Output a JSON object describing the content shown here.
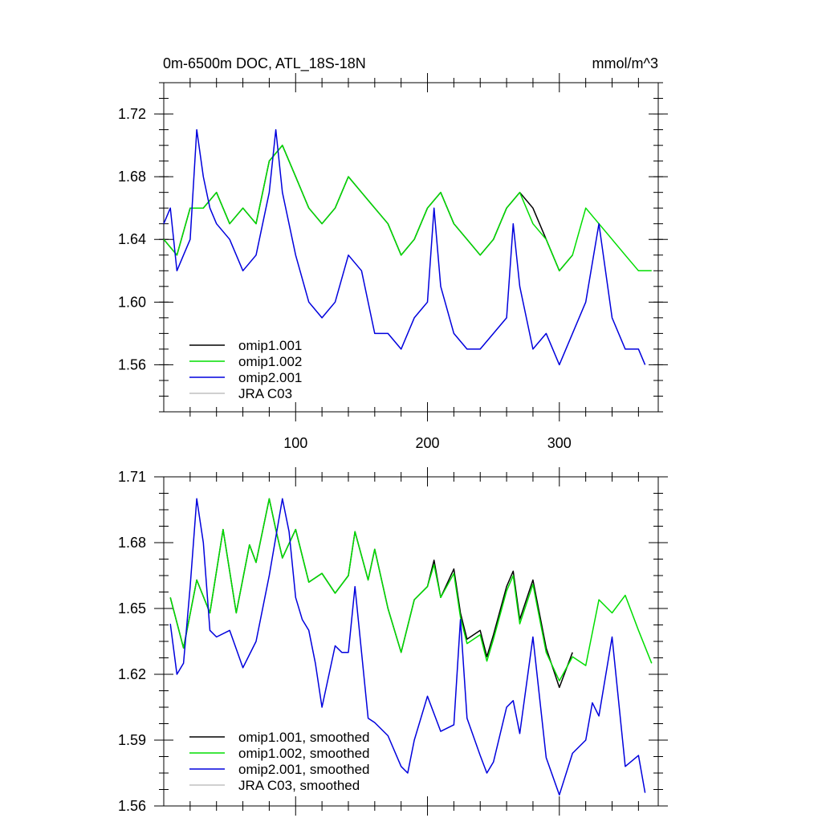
{
  "chart_data": [
    {
      "type": "line",
      "title_left": "0m-6500m DOC, ATL_18S-18N",
      "title_right": "mmol/m^3",
      "xlim": [
        0,
        375
      ],
      "ylim": [
        1.53,
        1.74
      ],
      "y_ticks": [
        "1.56",
        "1.60",
        "1.64",
        "1.68",
        "1.72"
      ],
      "x_ticks": [
        "100",
        "200",
        "300"
      ],
      "legend": [
        "omip1.001",
        "omip1.002",
        "omip2.001",
        "JRA C03"
      ],
      "series": [
        {
          "name": "omip1.001",
          "color": "#000000",
          "x": [
            0,
            10,
            20,
            30,
            40,
            50,
            60,
            70,
            80,
            90,
            100,
            110,
            120,
            130,
            140,
            150,
            160,
            170,
            180,
            190,
            200,
            210,
            220,
            230,
            240,
            250,
            260,
            270,
            280,
            290,
            300,
            310
          ],
          "values": [
            1.64,
            1.63,
            1.66,
            1.66,
            1.67,
            1.65,
            1.66,
            1.65,
            1.69,
            1.7,
            1.68,
            1.66,
            1.65,
            1.66,
            1.68,
            1.67,
            1.66,
            1.65,
            1.63,
            1.64,
            1.66,
            1.67,
            1.65,
            1.64,
            1.63,
            1.64,
            1.66,
            1.67,
            1.66,
            1.64,
            1.62,
            1.63
          ]
        },
        {
          "name": "omip1.002",
          "color": "#00dd00",
          "x": [
            0,
            10,
            20,
            30,
            40,
            50,
            60,
            70,
            80,
            90,
            100,
            110,
            120,
            130,
            140,
            150,
            160,
            170,
            180,
            190,
            200,
            210,
            220,
            230,
            240,
            250,
            260,
            270,
            280,
            290,
            300,
            310,
            320,
            330,
            340,
            350,
            360,
            370
          ],
          "values": [
            1.64,
            1.63,
            1.66,
            1.66,
            1.67,
            1.65,
            1.66,
            1.65,
            1.69,
            1.7,
            1.68,
            1.66,
            1.65,
            1.66,
            1.68,
            1.67,
            1.66,
            1.65,
            1.63,
            1.64,
            1.66,
            1.67,
            1.65,
            1.64,
            1.63,
            1.64,
            1.66,
            1.67,
            1.65,
            1.64,
            1.62,
            1.63,
            1.66,
            1.65,
            1.64,
            1.63,
            1.62,
            1.62
          ]
        },
        {
          "name": "omip2.001",
          "color": "#0000dd",
          "x": [
            0,
            5,
            10,
            15,
            20,
            25,
            30,
            35,
            40,
            50,
            60,
            70,
            80,
            85,
            90,
            100,
            110,
            120,
            130,
            140,
            150,
            160,
            170,
            180,
            190,
            200,
            205,
            210,
            220,
            230,
            240,
            250,
            260,
            265,
            270,
            280,
            290,
            300,
            310,
            320,
            330,
            340,
            350,
            360,
            365
          ],
          "values": [
            1.65,
            1.66,
            1.62,
            1.63,
            1.64,
            1.71,
            1.68,
            1.66,
            1.65,
            1.64,
            1.62,
            1.63,
            1.67,
            1.71,
            1.67,
            1.63,
            1.6,
            1.59,
            1.6,
            1.63,
            1.62,
            1.58,
            1.58,
            1.57,
            1.59,
            1.6,
            1.66,
            1.61,
            1.58,
            1.57,
            1.57,
            1.58,
            1.59,
            1.65,
            1.61,
            1.57,
            1.58,
            1.56,
            1.58,
            1.6,
            1.65,
            1.59,
            1.57,
            1.57,
            1.56
          ]
        },
        {
          "name": "JRA C03",
          "color": "#c0c0c0",
          "x": [],
          "values": []
        }
      ]
    },
    {
      "type": "line",
      "xlim": [
        0,
        375
      ],
      "ylim": [
        1.56,
        1.71
      ],
      "y_ticks": [
        "1.56",
        "1.59",
        "1.62",
        "1.65",
        "1.68",
        "1.71"
      ],
      "legend": [
        "omip1.001, smoothed",
        "omip1.002, smoothed",
        "omip2.001, smoothed",
        "JRA C03, smoothed"
      ],
      "series": [
        {
          "name": "omip1.001, smoothed",
          "color": "#000000",
          "x": [
            5,
            15,
            25,
            35,
            45,
            55,
            65,
            70,
            80,
            85,
            90,
            100,
            110,
            120,
            130,
            140,
            145,
            155,
            160,
            170,
            180,
            190,
            200,
            205,
            210,
            220,
            225,
            230,
            240,
            245,
            250,
            260,
            265,
            270,
            280,
            290,
            300,
            310
          ],
          "values": [
            1.655,
            1.632,
            1.663,
            1.648,
            1.686,
            1.648,
            1.679,
            1.671,
            1.7,
            1.686,
            1.673,
            1.686,
            1.662,
            1.666,
            1.657,
            1.665,
            1.685,
            1.663,
            1.677,
            1.65,
            1.63,
            1.654,
            1.66,
            1.672,
            1.655,
            1.668,
            1.648,
            1.636,
            1.64,
            1.628,
            1.638,
            1.66,
            1.667,
            1.645,
            1.663,
            1.632,
            1.614,
            1.63
          ]
        },
        {
          "name": "omip1.002, smoothed",
          "color": "#00dd00",
          "x": [
            5,
            15,
            25,
            35,
            45,
            55,
            65,
            70,
            80,
            85,
            90,
            100,
            110,
            120,
            130,
            140,
            145,
            155,
            160,
            170,
            180,
            190,
            200,
            205,
            210,
            220,
            225,
            230,
            240,
            245,
            250,
            260,
            265,
            270,
            280,
            290,
            300,
            310,
            320,
            330,
            340,
            350,
            360,
            370
          ],
          "values": [
            1.655,
            1.632,
            1.663,
            1.648,
            1.686,
            1.648,
            1.679,
            1.671,
            1.7,
            1.686,
            1.673,
            1.686,
            1.662,
            1.666,
            1.657,
            1.665,
            1.685,
            1.663,
            1.677,
            1.65,
            1.63,
            1.654,
            1.66,
            1.67,
            1.655,
            1.666,
            1.646,
            1.634,
            1.638,
            1.626,
            1.636,
            1.658,
            1.665,
            1.643,
            1.661,
            1.63,
            1.617,
            1.628,
            1.624,
            1.654,
            1.648,
            1.656,
            1.64,
            1.625
          ]
        },
        {
          "name": "omip2.001, smoothed",
          "color": "#0000dd",
          "x": [
            5,
            10,
            15,
            20,
            25,
            30,
            35,
            40,
            50,
            60,
            70,
            80,
            90,
            95,
            100,
            105,
            110,
            115,
            120,
            130,
            135,
            140,
            145,
            150,
            155,
            160,
            170,
            180,
            185,
            190,
            200,
            210,
            220,
            225,
            230,
            240,
            245,
            250,
            260,
            265,
            270,
            280,
            290,
            300,
            310,
            320,
            325,
            330,
            340,
            350,
            360,
            365
          ],
          "values": [
            1.643,
            1.62,
            1.625,
            1.66,
            1.7,
            1.68,
            1.64,
            1.637,
            1.64,
            1.623,
            1.635,
            1.665,
            1.7,
            1.685,
            1.655,
            1.645,
            1.64,
            1.625,
            1.605,
            1.633,
            1.63,
            1.63,
            1.66,
            1.63,
            1.6,
            1.598,
            1.592,
            1.578,
            1.575,
            1.59,
            1.61,
            1.594,
            1.597,
            1.645,
            1.6,
            1.583,
            1.575,
            1.58,
            1.605,
            1.608,
            1.593,
            1.637,
            1.582,
            1.565,
            1.584,
            1.59,
            1.607,
            1.601,
            1.637,
            1.578,
            1.583,
            1.566
          ]
        },
        {
          "name": "JRA C03, smoothed",
          "color": "#c0c0c0",
          "x": [],
          "values": []
        }
      ]
    }
  ]
}
